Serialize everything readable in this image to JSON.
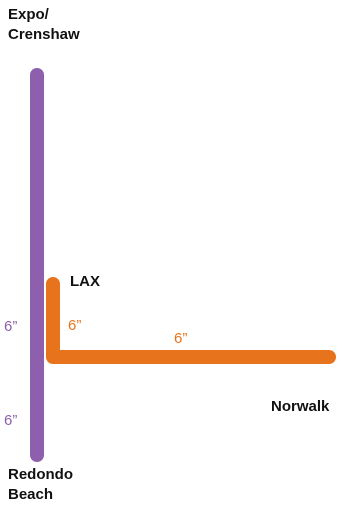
{
  "colors": {
    "purple_line": "#8e5fad",
    "orange_line": "#e8731d",
    "label_text": "#111111"
  },
  "lines": [
    {
      "name": "purple",
      "color": "#8e5fad"
    },
    {
      "name": "orange",
      "color": "#e8731d"
    }
  ],
  "stations": {
    "top": {
      "line1": "Expo/",
      "line2": "Crenshaw"
    },
    "bottom": {
      "line1": "Redondo",
      "line2": "Beach"
    },
    "lax": "LAX",
    "norwalk": "Norwalk"
  },
  "times": {
    "purple_upper": "6”",
    "purple_lower": "6”",
    "orange_vertical": "6”",
    "orange_horizontal": "6”"
  }
}
